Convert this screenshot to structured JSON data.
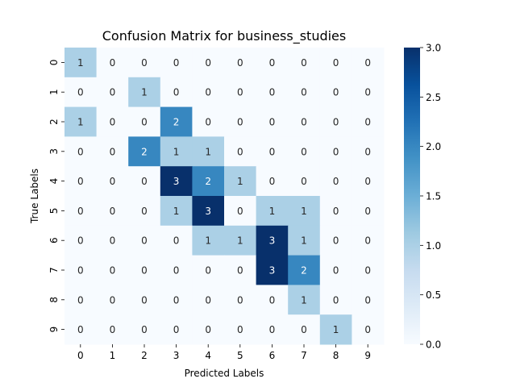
{
  "chart_data": {
    "type": "heatmap",
    "title": "Confusion Matrix for business_studies",
    "xlabel": "Predicted Labels",
    "ylabel": "True Labels",
    "x_categories": [
      "0",
      "1",
      "2",
      "3",
      "4",
      "5",
      "6",
      "7",
      "8",
      "9"
    ],
    "y_categories": [
      "0",
      "1",
      "2",
      "3",
      "4",
      "5",
      "6",
      "7",
      "8",
      "9"
    ],
    "matrix": [
      [
        1,
        0,
        0,
        0,
        0,
        0,
        0,
        0,
        0,
        0
      ],
      [
        0,
        0,
        1,
        0,
        0,
        0,
        0,
        0,
        0,
        0
      ],
      [
        1,
        0,
        0,
        2,
        0,
        0,
        0,
        0,
        0,
        0
      ],
      [
        0,
        0,
        2,
        1,
        1,
        0,
        0,
        0,
        0,
        0
      ],
      [
        0,
        0,
        0,
        3,
        2,
        1,
        0,
        0,
        0,
        0
      ],
      [
        0,
        0,
        0,
        1,
        3,
        0,
        1,
        1,
        0,
        0
      ],
      [
        0,
        0,
        0,
        0,
        1,
        1,
        3,
        1,
        0,
        0
      ],
      [
        0,
        0,
        0,
        0,
        0,
        0,
        3,
        2,
        0,
        0
      ],
      [
        0,
        0,
        0,
        0,
        0,
        0,
        0,
        1,
        0,
        0
      ],
      [
        0,
        0,
        0,
        0,
        0,
        0,
        0,
        0,
        1,
        0
      ]
    ],
    "value_range": [
      0,
      3
    ],
    "colormap": "Blues",
    "colorbar_ticks": [
      "0.0",
      "0.5",
      "1.0",
      "1.5",
      "2.0",
      "2.5",
      "3.0"
    ],
    "colorbar_tick_values": [
      0,
      0.5,
      1.0,
      1.5,
      2.0,
      2.5,
      3.0
    ],
    "colors": {
      "min": "#f7fbff",
      "max": "#08306b",
      "text_dark": "#262626",
      "text_light": "#ffffff"
    }
  }
}
